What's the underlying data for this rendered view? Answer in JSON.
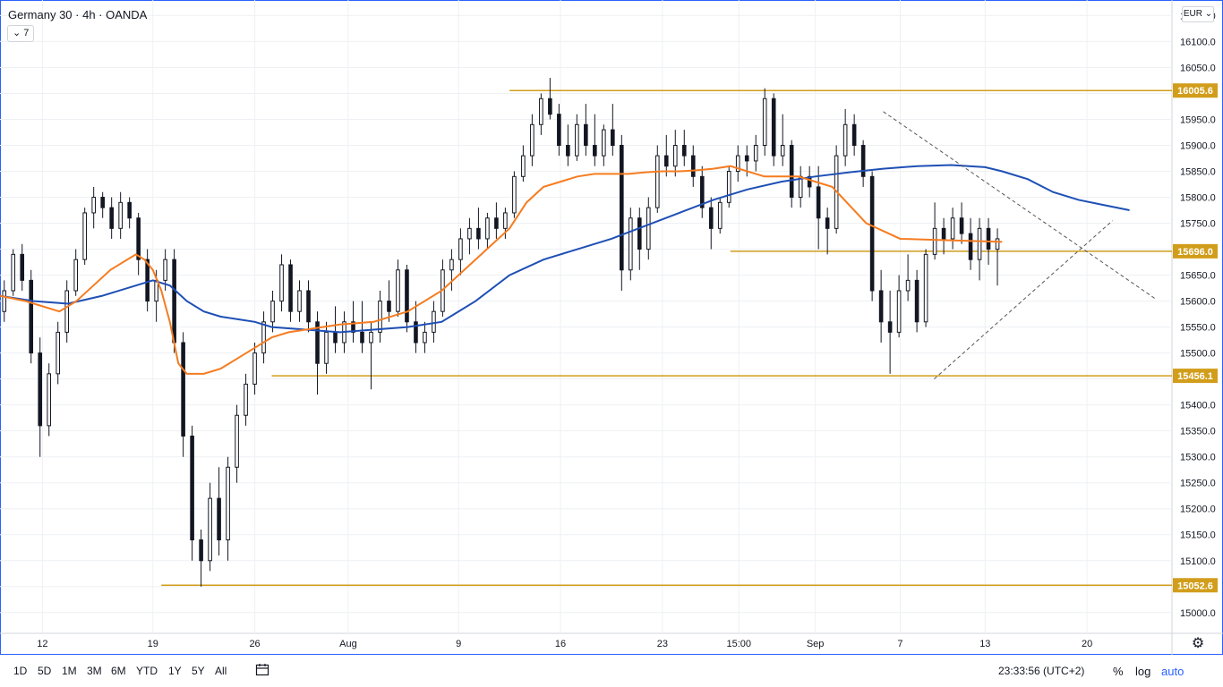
{
  "header": {
    "title": "Germany 30 · 4h · OANDA",
    "indicator_toggle": "7"
  },
  "currency": "EUR",
  "icons": {
    "collapse": "chevron-down-icon",
    "settings": "gear-icon",
    "goto_date": "calendar-icon",
    "currency_menu": "chevron-down-icon"
  },
  "colors": {
    "up": "#131722",
    "down": "#131722",
    "ema_fast": "#f57c20",
    "ema_slow": "#1e4fb5",
    "level": "#d19d1a",
    "trend": "#555555",
    "grid": "#eef0f3"
  },
  "bottom_bar": {
    "ranges": [
      "1D",
      "5D",
      "1M",
      "3M",
      "6M",
      "YTD",
      "1Y",
      "5Y",
      "All"
    ],
    "clock": "23:33:56 (UTC+2)",
    "options": [
      "%",
      "log",
      "auto"
    ],
    "active_option": "auto"
  },
  "chart_data": {
    "type": "candlestick",
    "symbol": "Germany 30",
    "interval": "4h",
    "source": "OANDA",
    "ylim": [
      14960,
      16180
    ],
    "y_ticks": [
      15000,
      15050,
      15100,
      15150,
      15200,
      15250,
      15300,
      15350,
      15400,
      15450,
      15500,
      15550,
      15600,
      15650,
      15700,
      15750,
      15800,
      15850,
      15900,
      15950,
      16000,
      16050,
      16100,
      16150
    ],
    "x_ticks": [
      {
        "label": "12",
        "t": 5
      },
      {
        "label": "19",
        "t": 18
      },
      {
        "label": "26",
        "t": 30
      },
      {
        "label": "Aug",
        "t": 41
      },
      {
        "label": "9",
        "t": 54
      },
      {
        "label": "16",
        "t": 66
      },
      {
        "label": "23",
        "t": 78
      },
      {
        "label": "15:00",
        "t": 87
      },
      {
        "label": "Sep",
        "t": 96
      },
      {
        "label": "7",
        "t": 106
      },
      {
        "label": "13",
        "t": 116
      },
      {
        "label": "20",
        "t": 128
      }
    ],
    "t_range": [
      0,
      138
    ],
    "levels": [
      {
        "value": 16005.6,
        "label": "16005.6",
        "from_t": 60
      },
      {
        "value": 15696.0,
        "label": "15696.0",
        "from_t": 86
      },
      {
        "value": 15456.1,
        "label": "15456.1",
        "from_t": 32
      },
      {
        "value": 15052.6,
        "label": "15052.6",
        "from_t": 19
      }
    ],
    "trendlines": [
      {
        "from": [
          104,
          15965
        ],
        "to": [
          136,
          15605
        ]
      },
      {
        "from": [
          110,
          15450
        ],
        "to": [
          131,
          15755
        ]
      }
    ],
    "ohlc": [
      [
        15580,
        15640,
        15560,
        15620
      ],
      [
        15620,
        15700,
        15610,
        15690
      ],
      [
        15690,
        15710,
        15620,
        15640
      ],
      [
        15640,
        15660,
        15480,
        15500
      ],
      [
        15500,
        15530,
        15300,
        15360
      ],
      [
        15360,
        15480,
        15340,
        15460
      ],
      [
        15460,
        15560,
        15440,
        15540
      ],
      [
        15540,
        15640,
        15520,
        15620
      ],
      [
        15620,
        15700,
        15610,
        15680
      ],
      [
        15680,
        15780,
        15670,
        15770
      ],
      [
        15770,
        15820,
        15740,
        15800
      ],
      [
        15800,
        15810,
        15760,
        15780
      ],
      [
        15780,
        15800,
        15720,
        15740
      ],
      [
        15740,
        15810,
        15720,
        15790
      ],
      [
        15790,
        15800,
        15740,
        15760
      ],
      [
        15760,
        15770,
        15650,
        15680
      ],
      [
        15680,
        15700,
        15580,
        15600
      ],
      [
        15600,
        15660,
        15560,
        15640
      ],
      [
        15640,
        15700,
        15620,
        15680
      ],
      [
        15680,
        15700,
        15500,
        15520
      ],
      [
        15520,
        15540,
        15300,
        15340
      ],
      [
        15340,
        15360,
        15100,
        15140
      ],
      [
        15140,
        15160,
        15050,
        15100
      ],
      [
        15100,
        15250,
        15080,
        15220
      ],
      [
        15220,
        15280,
        15110,
        15140
      ],
      [
        15140,
        15300,
        15100,
        15280
      ],
      [
        15280,
        15400,
        15250,
        15380
      ],
      [
        15380,
        15460,
        15360,
        15440
      ],
      [
        15440,
        15520,
        15420,
        15500
      ],
      [
        15500,
        15580,
        15480,
        15560
      ],
      [
        15560,
        15620,
        15540,
        15600
      ],
      [
        15600,
        15690,
        15580,
        15670
      ],
      [
        15670,
        15680,
        15560,
        15580
      ],
      [
        15580,
        15640,
        15560,
        15620
      ],
      [
        15620,
        15640,
        15540,
        15560
      ],
      [
        15560,
        15580,
        15420,
        15480
      ],
      [
        15480,
        15560,
        15460,
        15540
      ],
      [
        15540,
        15590,
        15500,
        15520
      ],
      [
        15520,
        15580,
        15500,
        15560
      ],
      [
        15560,
        15600,
        15520,
        15540
      ],
      [
        15540,
        15600,
        15500,
        15520
      ],
      [
        15520,
        15560,
        15430,
        15540
      ],
      [
        15540,
        15620,
        15520,
        15600
      ],
      [
        15600,
        15640,
        15560,
        15580
      ],
      [
        15580,
        15680,
        15570,
        15660
      ],
      [
        15660,
        15670,
        15540,
        15560
      ],
      [
        15560,
        15600,
        15500,
        15520
      ],
      [
        15520,
        15560,
        15500,
        15540
      ],
      [
        15540,
        15600,
        15520,
        15580
      ],
      [
        15580,
        15680,
        15570,
        15660
      ],
      [
        15660,
        15700,
        15620,
        15680
      ],
      [
        15680,
        15740,
        15650,
        15720
      ],
      [
        15720,
        15760,
        15690,
        15740
      ],
      [
        15740,
        15780,
        15700,
        15720
      ],
      [
        15720,
        15770,
        15700,
        15760
      ],
      [
        15760,
        15790,
        15720,
        15740
      ],
      [
        15740,
        15780,
        15720,
        15770
      ],
      [
        15770,
        15850,
        15760,
        15840
      ],
      [
        15840,
        15900,
        15830,
        15880
      ],
      [
        15880,
        15960,
        15860,
        15940
      ],
      [
        15940,
        16000,
        15920,
        15990
      ],
      [
        15990,
        16030,
        15950,
        15960
      ],
      [
        15960,
        15980,
        15880,
        15900
      ],
      [
        15900,
        15940,
        15860,
        15880
      ],
      [
        15880,
        15960,
        15870,
        15940
      ],
      [
        15940,
        15980,
        15880,
        15900
      ],
      [
        15900,
        15960,
        15860,
        15880
      ],
      [
        15880,
        15940,
        15860,
        15930
      ],
      [
        15930,
        15980,
        15880,
        15900
      ],
      [
        15900,
        15920,
        15620,
        15660
      ],
      [
        15660,
        15780,
        15640,
        15760
      ],
      [
        15760,
        15780,
        15660,
        15700
      ],
      [
        15700,
        15800,
        15680,
        15780
      ],
      [
        15780,
        15900,
        15770,
        15880
      ],
      [
        15880,
        15920,
        15840,
        15860
      ],
      [
        15860,
        15930,
        15840,
        15900
      ],
      [
        15900,
        15930,
        15860,
        15880
      ],
      [
        15880,
        15900,
        15820,
        15840
      ],
      [
        15840,
        15860,
        15760,
        15780
      ],
      [
        15780,
        15800,
        15700,
        15740
      ],
      [
        15740,
        15800,
        15730,
        15790
      ],
      [
        15790,
        15860,
        15780,
        15850
      ],
      [
        15850,
        15900,
        15830,
        15880
      ],
      [
        15880,
        15900,
        15840,
        15870
      ],
      [
        15870,
        15920,
        15850,
        15900
      ],
      [
        15900,
        16010,
        15880,
        15990
      ],
      [
        15990,
        16000,
        15860,
        15880
      ],
      [
        15880,
        15960,
        15860,
        15900
      ],
      [
        15900,
        15910,
        15780,
        15800
      ],
      [
        15800,
        15860,
        15780,
        15840
      ],
      [
        15840,
        15860,
        15800,
        15820
      ],
      [
        15820,
        15860,
        15700,
        15760
      ],
      [
        15760,
        15780,
        15690,
        15740
      ],
      [
        15740,
        15900,
        15730,
        15880
      ],
      [
        15880,
        15970,
        15860,
        15940
      ],
      [
        15940,
        15960,
        15880,
        15900
      ],
      [
        15900,
        15910,
        15820,
        15840
      ],
      [
        15840,
        15850,
        15600,
        15620
      ],
      [
        15620,
        15660,
        15520,
        15560
      ],
      [
        15560,
        15620,
        15460,
        15540
      ],
      [
        15540,
        15650,
        15530,
        15620
      ],
      [
        15620,
        15690,
        15600,
        15640
      ],
      [
        15640,
        15660,
        15540,
        15560
      ],
      [
        15560,
        15700,
        15550,
        15690
      ],
      [
        15690,
        15790,
        15680,
        15740
      ],
      [
        15740,
        15760,
        15690,
        15720
      ],
      [
        15720,
        15780,
        15700,
        15760
      ],
      [
        15760,
        15790,
        15710,
        15730
      ],
      [
        15730,
        15760,
        15660,
        15680
      ],
      [
        15680,
        15760,
        15640,
        15740
      ],
      [
        15740,
        15760,
        15670,
        15700
      ],
      [
        15700,
        15740,
        15630,
        15720
      ]
    ],
    "ema_fast": [
      15610,
      15600,
      15590,
      15580,
      15600,
      15630,
      15660,
      15680,
      15690,
      15680,
      15660,
      15620,
      15560,
      15480,
      15460,
      15460,
      15470,
      15490,
      15510,
      15530,
      15540,
      15545,
      15550,
      15555,
      15560,
      15580,
      15620,
      15680,
      15740,
      15790,
      15820,
      15830,
      15840,
      15845,
      15845,
      15845,
      15848,
      15850,
      15850,
      15852,
      15855,
      15860,
      15850,
      15840,
      15840,
      15820,
      15750,
      15720,
      15718,
      15716,
      15714
    ],
    "ema_slow": [
      15610,
      15600,
      15595,
      15610,
      15630,
      15640,
      15630,
      15600,
      15580,
      15570,
      15565,
      15560,
      15550,
      15545,
      15540,
      15545,
      15550,
      15560,
      15600,
      15650,
      15680,
      15700,
      15720,
      15745,
      15770,
      15795,
      15815,
      15830,
      15840,
      15848,
      15855,
      15860,
      15862,
      15858,
      15850,
      15835,
      15810,
      15795,
      15785,
      15775
    ],
    "ema_fast_t": [
      0,
      3,
      5,
      7,
      9,
      11,
      13,
      15,
      16,
      17,
      18,
      19,
      20,
      21,
      22,
      24,
      26,
      28,
      30,
      32,
      34,
      36,
      38,
      40,
      44,
      48,
      52,
      56,
      60,
      62,
      64,
      66,
      68,
      70,
      72,
      74,
      76,
      78,
      80,
      82,
      84,
      86,
      88,
      90,
      94,
      98,
      102,
      106,
      110,
      114,
      118
    ],
    "ema_slow_t": [
      0,
      4,
      8,
      12,
      16,
      18,
      20,
      22,
      24,
      26,
      28,
      30,
      32,
      36,
      40,
      44,
      48,
      52,
      56,
      60,
      64,
      68,
      72,
      76,
      80,
      84,
      88,
      92,
      96,
      100,
      104,
      108,
      112,
      116,
      118,
      121,
      124,
      127,
      130,
      133
    ]
  }
}
